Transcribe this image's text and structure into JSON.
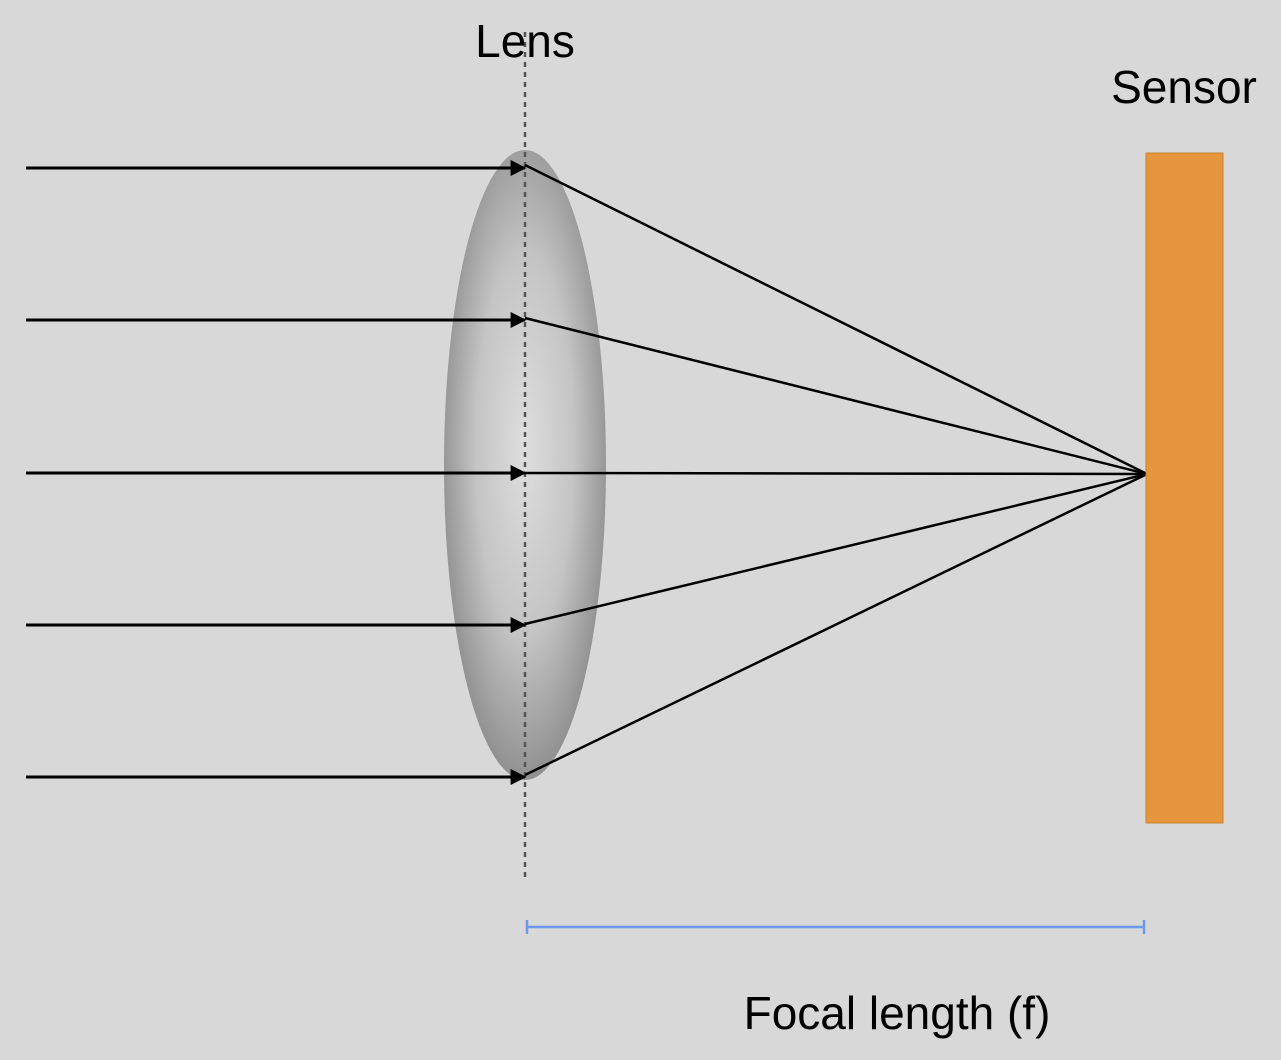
{
  "labels": {
    "lens": "Lens",
    "sensor": "Sensor",
    "focal_length": "Focal length (f)"
  },
  "colors": {
    "background": "#d8d8d8",
    "sensor": "#e5963d",
    "focal_bracket": "#6a9ae8",
    "ray": "#000000",
    "lens_center": "#dcdcdc",
    "lens_edge": "#8e8e8e",
    "axis": "#555555"
  },
  "diagram": {
    "incoming_ray_count": 5,
    "rays_converge_to": "focal point on sensor"
  }
}
